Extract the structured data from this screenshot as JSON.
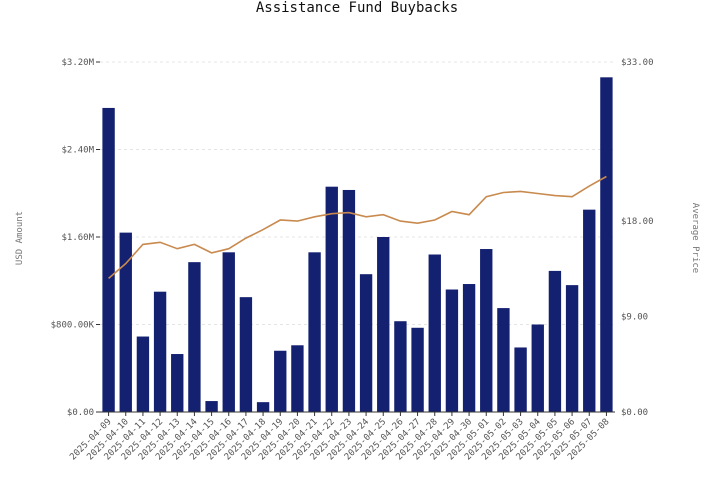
{
  "chart_data": {
    "type": "bar",
    "title": "Assistance Fund Buybacks",
    "ylabel": "USD Amount",
    "y2label": "Average Price",
    "ylim": [
      0,
      3200000
    ],
    "y2lim": [
      0,
      33
    ],
    "yticks": [
      {
        "value": 0,
        "label": "$0.00"
      },
      {
        "value": 800000,
        "label": "$800.00K"
      },
      {
        "value": 1600000,
        "label": "$1.60M"
      },
      {
        "value": 2400000,
        "label": "$2.40M"
      },
      {
        "value": 3200000,
        "label": "$3.20M"
      }
    ],
    "y2ticks": [
      {
        "value": 0,
        "label": "$0.00"
      },
      {
        "value": 9,
        "label": "$9.00"
      },
      {
        "value": 18,
        "label": "$18.00"
      },
      {
        "value": 33,
        "label": "$33.00"
      }
    ],
    "grid": true,
    "categories": [
      "2025-04-09",
      "2025-04-10",
      "2025-04-11",
      "2025-04-12",
      "2025-04-13",
      "2025-04-14",
      "2025-04-15",
      "2025-04-16",
      "2025-04-17",
      "2025-04-18",
      "2025-04-19",
      "2025-04-20",
      "2025-04-21",
      "2025-04-22",
      "2025-04-23",
      "2025-04-24",
      "2025-04-25",
      "2025-04-26",
      "2025-04-27",
      "2025-04-28",
      "2025-04-29",
      "2025-04-30",
      "2025-05-01",
      "2025-05-02",
      "2025-05-03",
      "2025-05-04",
      "2025-05-05",
      "2025-05-06",
      "2025-05-07",
      "2025-05-08"
    ],
    "series": [
      {
        "type": "bar",
        "axis": "left",
        "color": "#142070",
        "values": [
          2780000,
          1640000,
          690000,
          1100000,
          530000,
          1370000,
          100000,
          1460000,
          1050000,
          90000,
          560000,
          610000,
          1460000,
          2060000,
          2030000,
          1260000,
          1600000,
          830000,
          770000,
          1440000,
          1120000,
          1170000,
          1490000,
          950000,
          590000,
          800000,
          1290000,
          1160000,
          1850000,
          3060000
        ]
      },
      {
        "type": "line",
        "axis": "right",
        "color": "#c88a4e",
        "values": [
          12.6,
          14.0,
          15.8,
          16.0,
          15.4,
          15.8,
          15.0,
          15.4,
          16.4,
          17.2,
          18.1,
          18.0,
          18.4,
          18.7,
          18.8,
          18.4,
          18.6,
          18.0,
          17.8,
          18.1,
          18.9,
          18.6,
          20.3,
          20.7,
          20.8,
          20.6,
          20.4,
          20.3,
          21.3,
          22.2
        ]
      }
    ]
  }
}
